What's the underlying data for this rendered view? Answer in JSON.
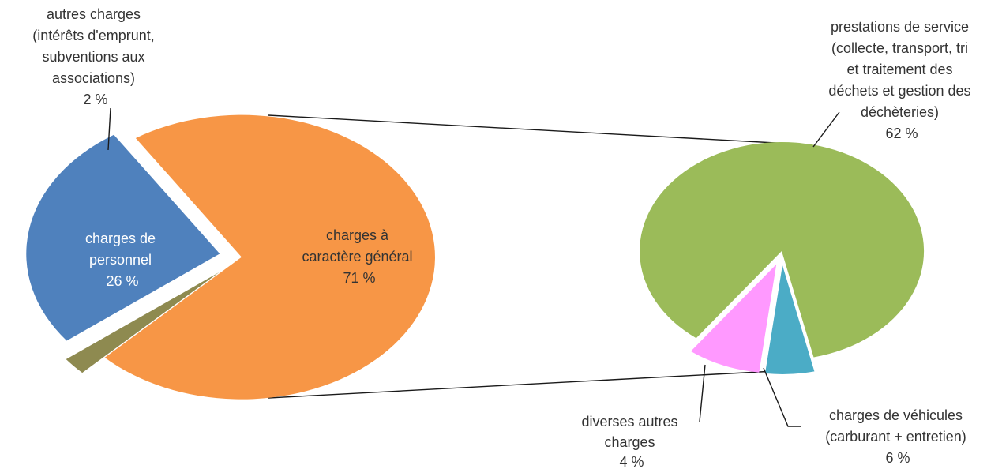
{
  "chart_data": [
    {
      "type": "pie",
      "title": "",
      "slices": [
        {
          "label_lines": [
            "charges à",
            "caractère général",
            "71 %"
          ],
          "value": 71,
          "color": "#F79646"
        },
        {
          "label_lines": [
            "charges de",
            "personnel",
            "26 %"
          ],
          "value": 26,
          "color": "#4F81BD"
        },
        {
          "label_lines": [
            "autres charges",
            "(intérêts d'emprunt,",
            "subventions aux",
            "associations)",
            "2 %"
          ],
          "value": 2,
          "color": "#8E8A50"
        }
      ]
    },
    {
      "type": "pie",
      "title": "",
      "slices": [
        {
          "label_lines": [
            "prestations de service",
            "(collecte, transport, tri",
            "et traitement des",
            "déchets et gestion des",
            "déchèteries)",
            "62 %"
          ],
          "value": 62,
          "color": "#9BBB59"
        },
        {
          "label_lines": [
            "charges de véhicules",
            "(carburant + entretien)",
            "6 %"
          ],
          "value": 6,
          "color": "#FF99FF"
        },
        {
          "label_lines": [
            "diverses autres",
            "charges",
            "4 %"
          ],
          "value": 4,
          "color": "#4BACC6"
        }
      ]
    }
  ]
}
